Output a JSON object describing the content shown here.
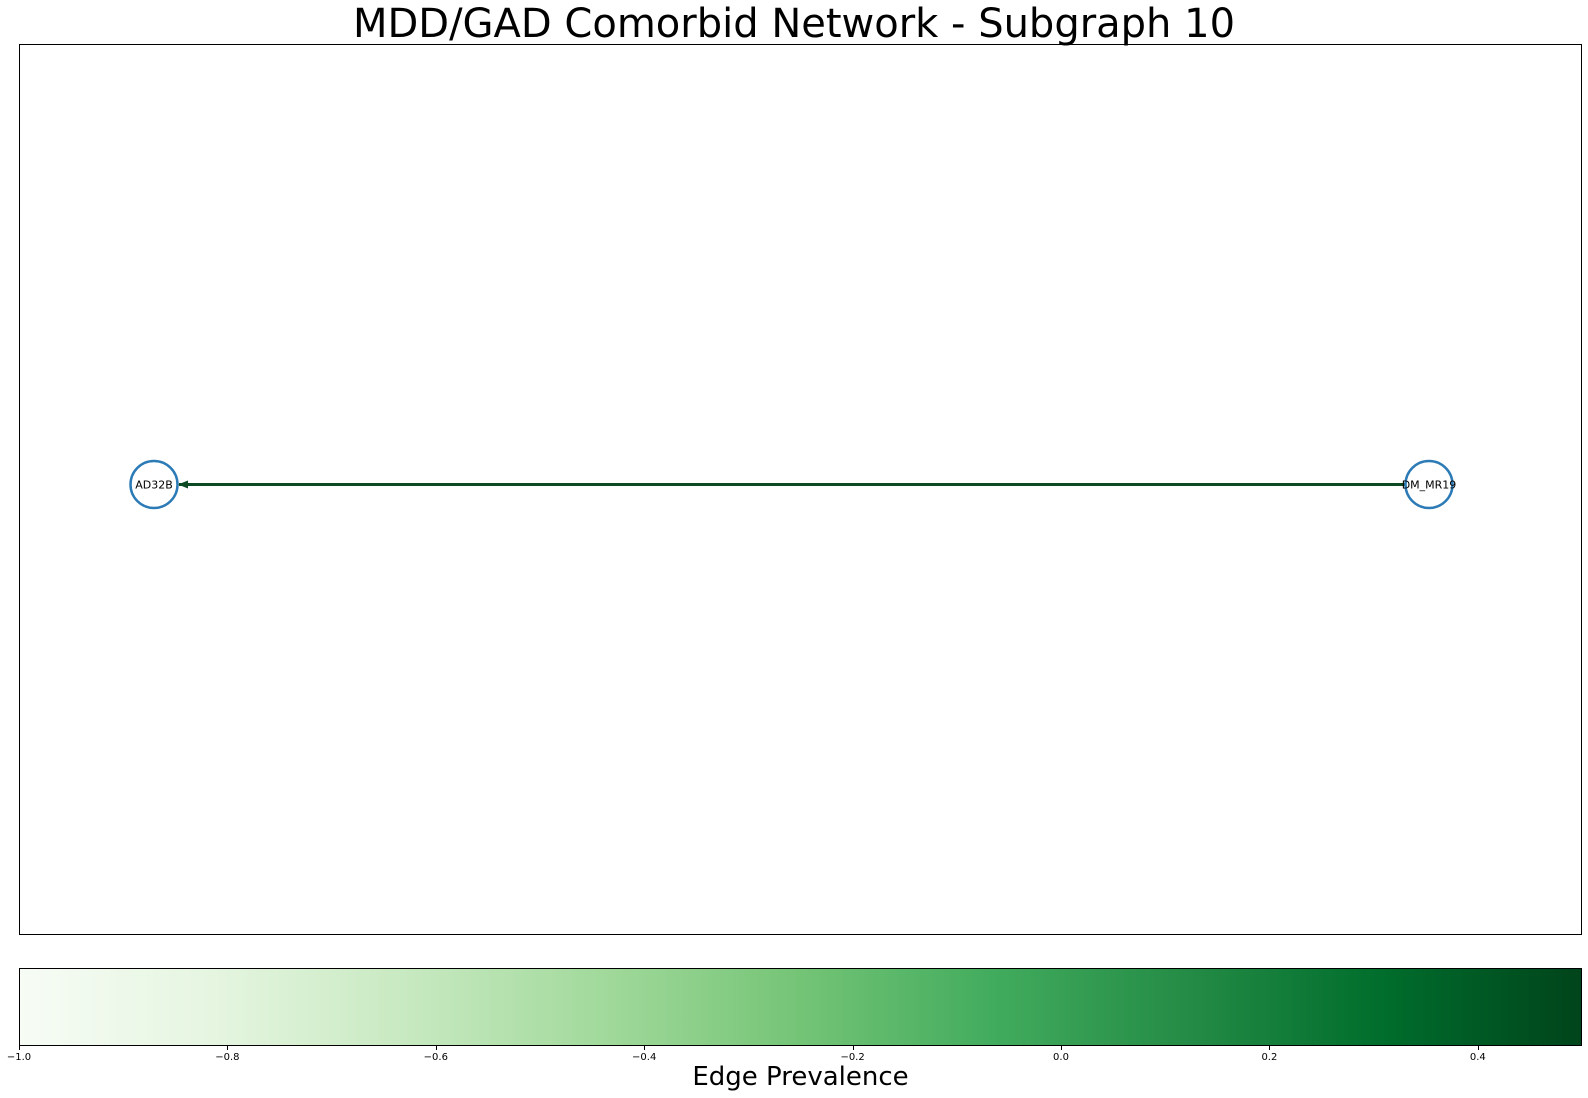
{
  "title": "MDD/GAD Comorbid Network - Subgraph 10",
  "graph": {
    "nodes": [
      {
        "id": "AD32B",
        "label": "AD32B"
      },
      {
        "id": "DM_MR19",
        "label": "DM_MR19"
      }
    ],
    "edges": [
      {
        "source": "DM_MR19",
        "target": "AD32B",
        "prevalence": 0.5,
        "color": "#0b4a23"
      }
    ],
    "node_color": "#2c7bb6"
  },
  "colorbar": {
    "label": "Edge Prevalence",
    "min": -1.0,
    "max": 0.5,
    "cmap": "Greens",
    "colors": [
      "#f7fcf5",
      "#e5f5e0",
      "#c7e9c0",
      "#a1d99b",
      "#74c476",
      "#41ab5d",
      "#238b45",
      "#006d2c",
      "#00441b"
    ],
    "ticks": [
      {
        "value": -1.0,
        "label": "−1.0"
      },
      {
        "value": -0.8,
        "label": "−0.8"
      },
      {
        "value": -0.6,
        "label": "−0.6"
      },
      {
        "value": -0.4,
        "label": "−0.4"
      },
      {
        "value": -0.2,
        "label": "−0.2"
      },
      {
        "value": 0.0,
        "label": "0.0"
      },
      {
        "value": 0.2,
        "label": "0.2"
      },
      {
        "value": 0.4,
        "label": "0.4"
      }
    ]
  }
}
